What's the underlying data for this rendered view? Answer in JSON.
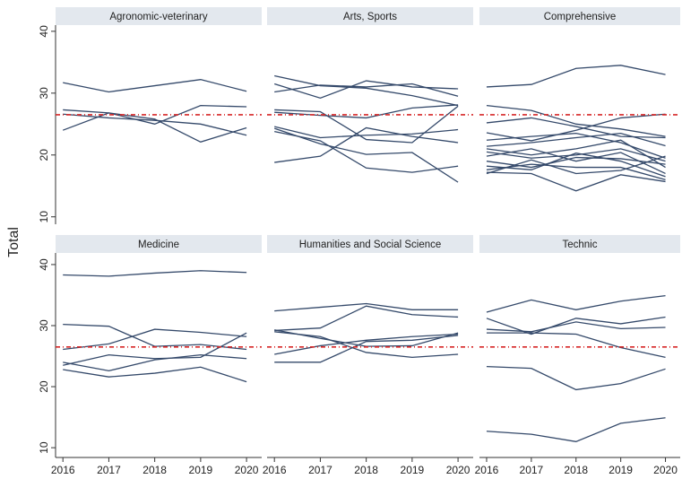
{
  "ylabel": "Total",
  "chart_data": [
    {
      "type": "line",
      "title": "Agronomic-veterinary",
      "x": [
        2016,
        2017,
        2018,
        2019,
        2020
      ],
      "xlim": [
        2015.84,
        2020.33
      ],
      "ylim": [
        8.8,
        41
      ],
      "yticks": [
        10,
        20,
        30,
        40
      ],
      "refline": 26.5,
      "refline_color": "#d62728",
      "series": [
        {
          "color": "#34496a",
          "values": [
            31.7,
            30.2,
            31.2,
            32.2,
            30.3
          ]
        },
        {
          "color": "#34496a",
          "values": [
            27.3,
            26.8,
            25.0,
            28.0,
            27.8
          ]
        },
        {
          "color": "#34496a",
          "values": [
            24.0,
            26.8,
            25.8,
            22.1,
            24.4
          ]
        },
        {
          "color": "#34496a",
          "values": [
            26.6,
            26.0,
            25.6,
            25.0,
            23.2
          ]
        }
      ]
    },
    {
      "type": "line",
      "title": "Arts, Sports",
      "x": [
        2016,
        2017,
        2018,
        2019,
        2020
      ],
      "xlim": [
        2015.84,
        2020.33
      ],
      "ylim": [
        8.8,
        41
      ],
      "refline": 26.5,
      "refline_color": "#d62728",
      "series": [
        {
          "color": "#34496a",
          "values": [
            32.8,
            31.2,
            30.8,
            29.6,
            28.0
          ]
        },
        {
          "color": "#34496a",
          "values": [
            31.5,
            29.2,
            32.0,
            31.0,
            30.7
          ]
        },
        {
          "color": "#34496a",
          "values": [
            30.2,
            31.3,
            31.0,
            31.5,
            29.5
          ]
        },
        {
          "color": "#34496a",
          "values": [
            27.3,
            27.0,
            22.5,
            22.0,
            27.9
          ]
        },
        {
          "color": "#34496a",
          "values": [
            26.9,
            26.4,
            26.0,
            27.6,
            28.1
          ]
        },
        {
          "color": "#34496a",
          "values": [
            24.6,
            22.8,
            23.2,
            23.4,
            24.1
          ]
        },
        {
          "color": "#34496a",
          "values": [
            24.3,
            21.8,
            20.1,
            20.4,
            15.6
          ]
        },
        {
          "color": "#34496a",
          "values": [
            23.8,
            22.3,
            17.9,
            17.2,
            18.2
          ]
        },
        {
          "color": "#34496a",
          "values": [
            18.8,
            19.8,
            24.4,
            23.0,
            22.0
          ]
        }
      ]
    },
    {
      "type": "line",
      "title": "Comprehensive",
      "x": [
        2016,
        2017,
        2018,
        2019,
        2020
      ],
      "xlim": [
        2015.84,
        2020.33
      ],
      "ylim": [
        8.8,
        41
      ],
      "refline": 26.5,
      "refline_color": "#d62728",
      "series": [
        {
          "color": "#34496a",
          "values": [
            31.0,
            31.4,
            34.0,
            34.5,
            33.0
          ]
        },
        {
          "color": "#34496a",
          "values": [
            28.0,
            27.2,
            25.0,
            24.2,
            23.0
          ]
        },
        {
          "color": "#34496a",
          "values": [
            25.2,
            26.0,
            24.6,
            23.0,
            22.8
          ]
        },
        {
          "color": "#34496a",
          "values": [
            23.6,
            22.3,
            24.0,
            26.0,
            26.6
          ]
        },
        {
          "color": "#34496a",
          "values": [
            22.4,
            23.0,
            23.5,
            22.0,
            19.5
          ]
        },
        {
          "color": "#34496a",
          "values": [
            21.4,
            22.0,
            22.8,
            23.5,
            21.5
          ]
        },
        {
          "color": "#34496a",
          "values": [
            21.0,
            20.0,
            21.0,
            22.4,
            18.0
          ]
        },
        {
          "color": "#34496a",
          "values": [
            20.5,
            19.5,
            20.0,
            21.0,
            19.0
          ]
        },
        {
          "color": "#34496a",
          "values": [
            19.8,
            21.0,
            19.0,
            20.4,
            17.0
          ]
        },
        {
          "color": "#34496a",
          "values": [
            19.0,
            18.0,
            19.6,
            19.4,
            18.5
          ]
        },
        {
          "color": "#34496a",
          "values": [
            18.2,
            17.6,
            20.3,
            19.0,
            16.5
          ]
        },
        {
          "color": "#34496a",
          "values": [
            17.6,
            18.5,
            18.0,
            18.0,
            16.0
          ]
        },
        {
          "color": "#34496a",
          "values": [
            17.2,
            17.0,
            14.2,
            16.8,
            15.7
          ]
        },
        {
          "color": "#34496a",
          "values": [
            17.0,
            19.2,
            17.0,
            17.5,
            19.8
          ]
        }
      ]
    },
    {
      "type": "line",
      "title": "Medicine",
      "x": [
        2016,
        2017,
        2018,
        2019,
        2020
      ],
      "xlim": [
        2015.84,
        2020.33
      ],
      "xticks": [
        2016,
        2017,
        2018,
        2019,
        2020
      ],
      "ylim": [
        8.4,
        41.9
      ],
      "yticks": [
        10,
        20,
        30,
        40
      ],
      "refline": 26.5,
      "refline_color": "#d62728",
      "series": [
        {
          "color": "#34496a",
          "values": [
            38.3,
            38.1,
            38.6,
            39.0,
            38.7
          ]
        },
        {
          "color": "#34496a",
          "values": [
            30.2,
            29.9,
            26.6,
            26.9,
            26.1
          ]
        },
        {
          "color": "#34496a",
          "values": [
            26.1,
            27.0,
            29.4,
            28.9,
            28.2
          ]
        },
        {
          "color": "#34496a",
          "values": [
            24.0,
            22.6,
            24.4,
            25.2,
            24.6
          ]
        },
        {
          "color": "#34496a",
          "values": [
            23.5,
            25.2,
            24.6,
            24.8,
            28.8
          ]
        },
        {
          "color": "#34496a",
          "values": [
            22.8,
            21.6,
            22.2,
            23.2,
            20.8
          ]
        }
      ]
    },
    {
      "type": "line",
      "title": "Humanities and Social Science",
      "x": [
        2016,
        2017,
        2018,
        2019,
        2020
      ],
      "xlim": [
        2015.84,
        2020.33
      ],
      "xticks": [
        2016,
        2017,
        2018,
        2019,
        2020
      ],
      "ylim": [
        8.4,
        41.9
      ],
      "refline": 26.5,
      "refline_color": "#d62728",
      "series": [
        {
          "color": "#34496a",
          "values": [
            32.4,
            33.0,
            33.6,
            32.6,
            32.6
          ]
        },
        {
          "color": "#34496a",
          "values": [
            29.2,
            29.6,
            33.2,
            31.8,
            31.4
          ]
        },
        {
          "color": "#34496a",
          "values": [
            29.0,
            28.2,
            25.6,
            24.8,
            25.3
          ]
        },
        {
          "color": "#34496a",
          "values": [
            29.3,
            27.9,
            26.6,
            26.7,
            28.8
          ]
        },
        {
          "color": "#34496a",
          "values": [
            25.3,
            26.7,
            27.6,
            28.2,
            28.6
          ]
        },
        {
          "color": "#34496a",
          "values": [
            24.0,
            24.0,
            27.4,
            27.6,
            28.4
          ]
        }
      ]
    },
    {
      "type": "line",
      "title": "Technic",
      "x": [
        2016,
        2017,
        2018,
        2019,
        2020
      ],
      "xlim": [
        2015.84,
        2020.33
      ],
      "xticks": [
        2016,
        2017,
        2018,
        2019,
        2020
      ],
      "ylim": [
        8.4,
        41.9
      ],
      "refline": 26.5,
      "refline_color": "#d62728",
      "series": [
        {
          "color": "#34496a",
          "values": [
            32.2,
            34.2,
            32.6,
            34.0,
            34.9
          ]
        },
        {
          "color": "#34496a",
          "values": [
            31.2,
            28.6,
            31.2,
            30.3,
            31.4
          ]
        },
        {
          "color": "#34496a",
          "values": [
            29.4,
            29.0,
            30.6,
            29.5,
            29.7
          ]
        },
        {
          "color": "#34496a",
          "values": [
            28.8,
            28.8,
            28.6,
            26.4,
            24.8
          ]
        },
        {
          "color": "#34496a",
          "values": [
            23.3,
            23.0,
            19.5,
            20.5,
            22.9
          ]
        },
        {
          "color": "#34496a",
          "values": [
            12.7,
            12.2,
            11.0,
            14.0,
            14.9
          ]
        }
      ]
    }
  ]
}
